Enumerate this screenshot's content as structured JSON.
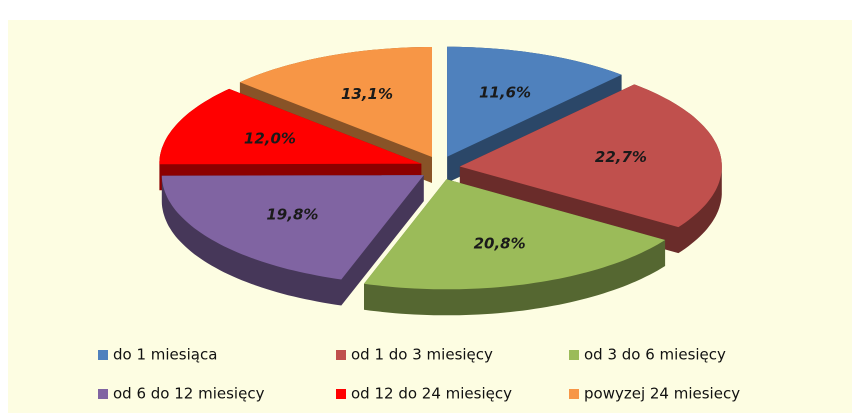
{
  "chart_data": {
    "type": "pie",
    "categories": [
      "do 1 miesiąca",
      "od 1 do 3 miesięcy",
      "od 3 do 6 miesięcy",
      "od 6 do 12 miesięcy",
      "od 12 do 24 miesięcy",
      "powyzej 24 miesiecy"
    ],
    "values": [
      11.6,
      22.7,
      20.8,
      19.8,
      12.0,
      13.1
    ],
    "value_labels": [
      "11,6%",
      "22,7%",
      "20,8%",
      "19,8%",
      "12,0%",
      "13,1%"
    ],
    "colors": [
      "#4f81bd",
      "#c0504d",
      "#9bbb59",
      "#8064a2",
      "#ff0000",
      "#f79646"
    ],
    "legend": "bottom"
  }
}
